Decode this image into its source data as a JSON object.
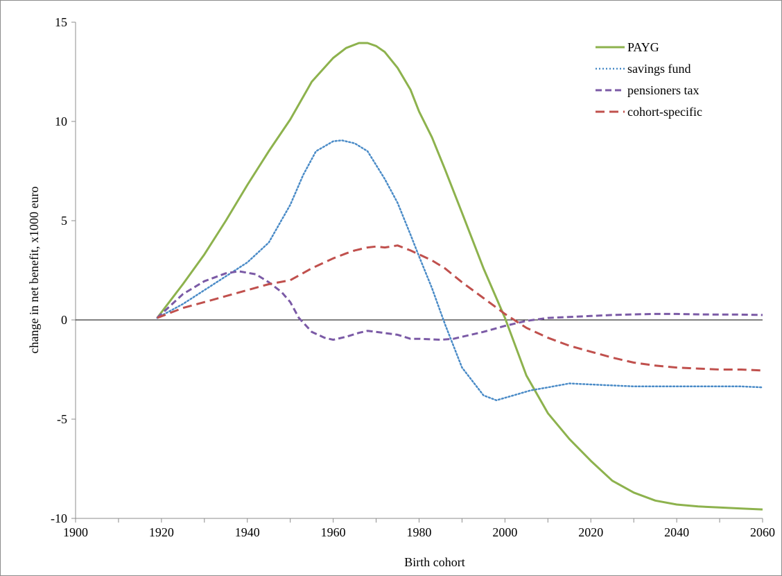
{
  "chart_data": {
    "type": "line",
    "title": "",
    "xlabel": "Birth cohort",
    "ylabel": "change in net benefit, x1000 euro",
    "xlim": [
      1900,
      2060
    ],
    "ylim": [
      -10,
      15
    ],
    "xticks": [
      1900,
      1920,
      1940,
      1960,
      1980,
      2000,
      2020,
      2040,
      2060
    ],
    "xminor_step": 10,
    "yticks": [
      -10,
      -5,
      0,
      5,
      10,
      15
    ],
    "grid": false,
    "zero_line": true,
    "legend_position": "top-right",
    "series": [
      {
        "name": "PAYG",
        "color": "#8db24d",
        "style": "solid",
        "x": [
          1919,
          1925,
          1930,
          1935,
          1940,
          1945,
          1950,
          1955,
          1960,
          1963,
          1966,
          1968,
          1970,
          1972,
          1975,
          1978,
          1980,
          1983,
          1986,
          1990,
          1995,
          2000,
          2005,
          2010,
          2015,
          2020,
          2025,
          2030,
          2035,
          2040,
          2045,
          2050,
          2055,
          2060
        ],
        "y": [
          0.1,
          1.8,
          3.3,
          5.0,
          6.8,
          8.5,
          10.1,
          12.0,
          13.2,
          13.7,
          13.95,
          13.95,
          13.8,
          13.5,
          12.7,
          11.6,
          10.5,
          9.2,
          7.6,
          5.4,
          2.6,
          0.1,
          -2.8,
          -4.7,
          -6.0,
          -7.1,
          -8.1,
          -8.7,
          -9.1,
          -9.3,
          -9.4,
          -9.45,
          -9.5,
          -9.55
        ]
      },
      {
        "name": "savings fund",
        "color": "#4a8bc7",
        "style": "dotted",
        "x": [
          1919,
          1925,
          1930,
          1935,
          1940,
          1945,
          1950,
          1953,
          1956,
          1960,
          1962,
          1965,
          1968,
          1972,
          1975,
          1978,
          1980,
          1983,
          1986,
          1990,
          1995,
          1998,
          2002,
          2006,
          2010,
          2015,
          2020,
          2025,
          2030,
          2035,
          2040,
          2045,
          2050,
          2055,
          2060
        ],
        "y": [
          0.1,
          0.8,
          1.5,
          2.2,
          2.9,
          3.9,
          5.8,
          7.3,
          8.5,
          9.0,
          9.05,
          8.9,
          8.5,
          7.1,
          5.9,
          4.3,
          3.2,
          1.6,
          -0.2,
          -2.4,
          -3.8,
          -4.05,
          -3.8,
          -3.55,
          -3.4,
          -3.2,
          -3.25,
          -3.3,
          -3.35,
          -3.35,
          -3.35,
          -3.35,
          -3.35,
          -3.35,
          -3.4
        ]
      },
      {
        "name": "pensioners tax",
        "color": "#7b5aa6",
        "style": "dashed",
        "x": [
          1919,
          1925,
          1930,
          1935,
          1938,
          1942,
          1945,
          1948,
          1950,
          1952,
          1955,
          1958,
          1960,
          1963,
          1966,
          1968,
          1970,
          1975,
          1978,
          1980,
          1985,
          1988,
          1990,
          1995,
          2000,
          2005,
          2010,
          2015,
          2020,
          2025,
          2030,
          2035,
          2040,
          2045,
          2050,
          2055,
          2060
        ],
        "y": [
          0.1,
          1.3,
          1.95,
          2.35,
          2.45,
          2.3,
          1.9,
          1.4,
          0.9,
          0.1,
          -0.6,
          -0.9,
          -1.0,
          -0.85,
          -0.65,
          -0.55,
          -0.6,
          -0.75,
          -0.95,
          -0.95,
          -1.0,
          -0.95,
          -0.85,
          -0.6,
          -0.3,
          -0.05,
          0.1,
          0.15,
          0.2,
          0.25,
          0.28,
          0.3,
          0.3,
          0.28,
          0.27,
          0.27,
          0.25
        ]
      },
      {
        "name": "cohort-specific",
        "color": "#c0504d",
        "style": "dashed",
        "x": [
          1919,
          1925,
          1930,
          1935,
          1940,
          1945,
          1950,
          1955,
          1960,
          1963,
          1965,
          1968,
          1970,
          1972,
          1975,
          1978,
          1980,
          1983,
          1986,
          1990,
          1995,
          2000,
          2005,
          2010,
          2015,
          2020,
          2025,
          2030,
          2035,
          2040,
          2045,
          2050,
          2055,
          2060
        ],
        "y": [
          0.1,
          0.6,
          0.9,
          1.2,
          1.5,
          1.8,
          2.0,
          2.6,
          3.1,
          3.35,
          3.5,
          3.65,
          3.7,
          3.65,
          3.75,
          3.5,
          3.3,
          3.0,
          2.6,
          1.9,
          1.1,
          0.3,
          -0.4,
          -0.9,
          -1.3,
          -1.6,
          -1.9,
          -2.15,
          -2.3,
          -2.4,
          -2.45,
          -2.5,
          -2.5,
          -2.55
        ]
      }
    ]
  }
}
